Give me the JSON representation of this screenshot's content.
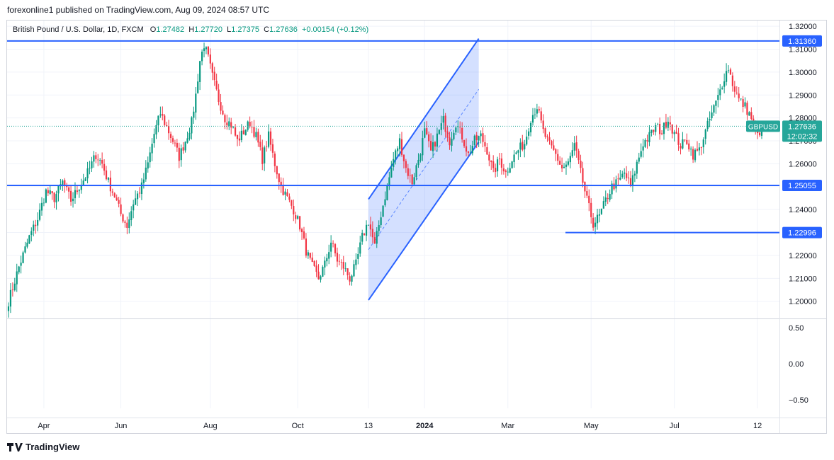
{
  "header": {
    "published": "forexonline1 published on TradingView.com, Aug 09, 2024 08:57 UTC"
  },
  "legend": {
    "title": "British Pound / U.S. Dollar, 1D, FXCM",
    "o_label": "O",
    "o_value": "1.27482",
    "h_label": "H",
    "h_value": "1.27720",
    "l_label": "L",
    "l_value": "1.27375",
    "c_label": "C",
    "c_value": "1.27636",
    "change": "+0.00154 (+0.12%)"
  },
  "footer": {
    "brand": "TradingView",
    "logo_icon": "tradingview-logo-icon"
  },
  "colors": {
    "up": "#089981",
    "down": "#f23645",
    "line": "#2962ff",
    "channel_fill": "#2962ff",
    "axis_text": "#131722",
    "badge": "#2962ff",
    "price_badge": "#26a69a"
  },
  "chart_data": {
    "type": "candlestick",
    "symbol": "GBPUSD",
    "timeframe": "1D",
    "y_ticks": [
      "1.32000",
      "1.31000",
      "1.30000",
      "1.29000",
      "1.28000",
      "1.27000",
      "1.26000",
      "1.25000",
      "1.24000",
      "1.23000",
      "1.22000",
      "1.21000",
      "1.20000"
    ],
    "ylim": [
      1.1925,
      1.3225
    ],
    "x_ticks": [
      "Apr",
      "Jun",
      "Aug",
      "Oct",
      "13",
      "2024",
      "Mar",
      "May",
      "Jul",
      "12"
    ],
    "horizontal_levels": [
      {
        "label": "1.31360",
        "value": 1.3136
      },
      {
        "label": "1.25055",
        "value": 1.25055
      },
      {
        "label": "1.22996",
        "value": 1.22996
      }
    ],
    "current_price": {
      "symbol": "GBPUSD",
      "value": "1.27636",
      "countdown": "12:02:32"
    },
    "channel": {
      "lower_start": 1.2005,
      "lower_end": 1.2695,
      "upper_start": 1.2445,
      "upper_end": 1.3146,
      "mid_end": 1.2925
    },
    "path": [
      [
        0,
        1.2
      ],
      [
        5,
        1.215
      ],
      [
        10,
        1.228
      ],
      [
        14,
        1.236
      ],
      [
        18,
        1.248
      ],
      [
        22,
        1.245
      ],
      [
        26,
        1.252
      ],
      [
        30,
        1.244
      ],
      [
        34,
        1.25
      ],
      [
        38,
        1.256
      ],
      [
        42,
        1.264
      ],
      [
        45,
        1.26
      ],
      [
        48,
        1.252
      ],
      [
        51,
        1.246
      ],
      [
        54,
        1.238
      ],
      [
        57,
        1.233
      ],
      [
        60,
        1.243
      ],
      [
        64,
        1.25
      ],
      [
        67,
        1.26
      ],
      [
        70,
        1.273
      ],
      [
        73,
        1.282
      ],
      [
        76,
        1.276
      ],
      [
        79,
        1.27
      ],
      [
        82,
        1.263
      ],
      [
        85,
        1.27
      ],
      [
        88,
        1.278
      ],
      [
        90,
        1.29
      ],
      [
        92,
        1.305
      ],
      [
        94,
        1.312
      ],
      [
        96,
        1.306
      ],
      [
        98,
        1.298
      ],
      [
        101,
        1.288
      ],
      [
        104,
        1.28
      ],
      [
        107,
        1.277
      ],
      [
        110,
        1.27
      ],
      [
        113,
        1.274
      ],
      [
        116,
        1.278
      ],
      [
        119,
        1.272
      ],
      [
        122,
        1.262
      ],
      [
        125,
        1.272
      ],
      [
        128,
        1.26
      ],
      [
        131,
        1.25
      ],
      [
        134,
        1.245
      ],
      [
        137,
        1.24
      ],
      [
        140,
        1.233
      ],
      [
        143,
        1.222
      ],
      [
        146,
        1.215
      ],
      [
        149,
        1.21
      ],
      [
        152,
        1.216
      ],
      [
        155,
        1.226
      ],
      [
        158,
        1.218
      ],
      [
        161,
        1.215
      ],
      [
        164,
        1.21
      ],
      [
        167,
        1.216
      ],
      [
        170,
        1.228
      ],
      [
        173,
        1.235
      ],
      [
        176,
        1.224
      ],
      [
        179,
        1.238
      ],
      [
        182,
        1.25
      ],
      [
        185,
        1.262
      ],
      [
        188,
        1.27
      ],
      [
        191,
        1.258
      ],
      [
        194,
        1.252
      ],
      [
        197,
        1.262
      ],
      [
        200,
        1.274
      ],
      [
        203,
        1.265
      ],
      [
        206,
        1.272
      ],
      [
        209,
        1.279
      ],
      [
        212,
        1.27
      ],
      [
        215,
        1.278
      ],
      [
        218,
        1.272
      ],
      [
        221,
        1.264
      ],
      [
        224,
        1.27
      ],
      [
        227,
        1.272
      ],
      [
        230,
        1.266
      ],
      [
        233,
        1.256
      ],
      [
        236,
        1.262
      ],
      [
        239,
        1.256
      ],
      [
        242,
        1.262
      ],
      [
        245,
        1.266
      ],
      [
        248,
        1.269
      ],
      [
        251,
        1.28
      ],
      [
        254,
        1.285
      ],
      [
        257,
        1.274
      ],
      [
        260,
        1.268
      ],
      [
        263,
        1.264
      ],
      [
        266,
        1.258
      ],
      [
        269,
        1.26
      ],
      [
        272,
        1.268
      ],
      [
        275,
        1.256
      ],
      [
        278,
        1.244
      ],
      [
        281,
        1.234
      ],
      [
        284,
        1.237
      ],
      [
        287,
        1.244
      ],
      [
        290,
        1.25
      ],
      [
        293,
        1.252
      ],
      [
        296,
        1.256
      ],
      [
        299,
        1.25
      ],
      [
        302,
        1.26
      ],
      [
        305,
        1.269
      ],
      [
        308,
        1.272
      ],
      [
        311,
        1.276
      ],
      [
        314,
        1.274
      ],
      [
        317,
        1.28
      ],
      [
        320,
        1.273
      ],
      [
        323,
        1.268
      ],
      [
        326,
        1.27
      ],
      [
        329,
        1.264
      ],
      [
        332,
        1.266
      ],
      [
        335,
        1.274
      ],
      [
        338,
        1.282
      ],
      [
        341,
        1.289
      ],
      [
        344,
        1.298
      ],
      [
        346,
        1.302
      ],
      [
        348,
        1.295
      ],
      [
        351,
        1.288
      ],
      [
        354,
        1.285
      ],
      [
        357,
        1.28
      ],
      [
        360,
        1.272
      ],
      [
        362,
        1.2764
      ]
    ],
    "n_bars": 363,
    "oscillator": {
      "ticks": [
        "0.50",
        "0.00",
        "−0.50"
      ],
      "ylim": [
        -0.62,
        0.62
      ]
    }
  }
}
